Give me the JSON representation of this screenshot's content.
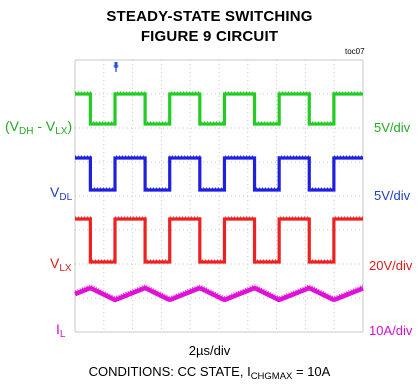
{
  "chart_data": {
    "type": "line",
    "title_line1": "STEADY-STATE SWITCHING",
    "title_line2": "FIGURE 9 CIRCUIT",
    "tag": "toc07",
    "xlabel": "2µs/div",
    "grid": true,
    "grid_divisions": {
      "x": 10,
      "y": 8
    },
    "conditions": {
      "prefix": "CONDITIONS: CC STATE, I",
      "subscript": "CHGMAX",
      "suffix": " = 10A"
    },
    "trigger_marker": "T",
    "series": [
      {
        "name": "(V",
        "name_sub": "DH",
        "name_mid": " - V",
        "name_sub2": "LX",
        "name_end": ")",
        "scale": "5V/div",
        "color": "#22cc22",
        "waveform": "square"
      },
      {
        "name": "V",
        "name_sub": "DL",
        "scale": "5V/div",
        "color": "#1f1fe0",
        "waveform": "square"
      },
      {
        "name": "V",
        "name_sub": "LX",
        "scale": "20V/div",
        "color": "#ee2020",
        "waveform": "square"
      },
      {
        "name": "I",
        "name_sub": "L",
        "scale": "10A/div",
        "color": "#e010d8",
        "waveform": "triangle"
      }
    ],
    "period_div": 1.9,
    "duty": 0.55
  }
}
